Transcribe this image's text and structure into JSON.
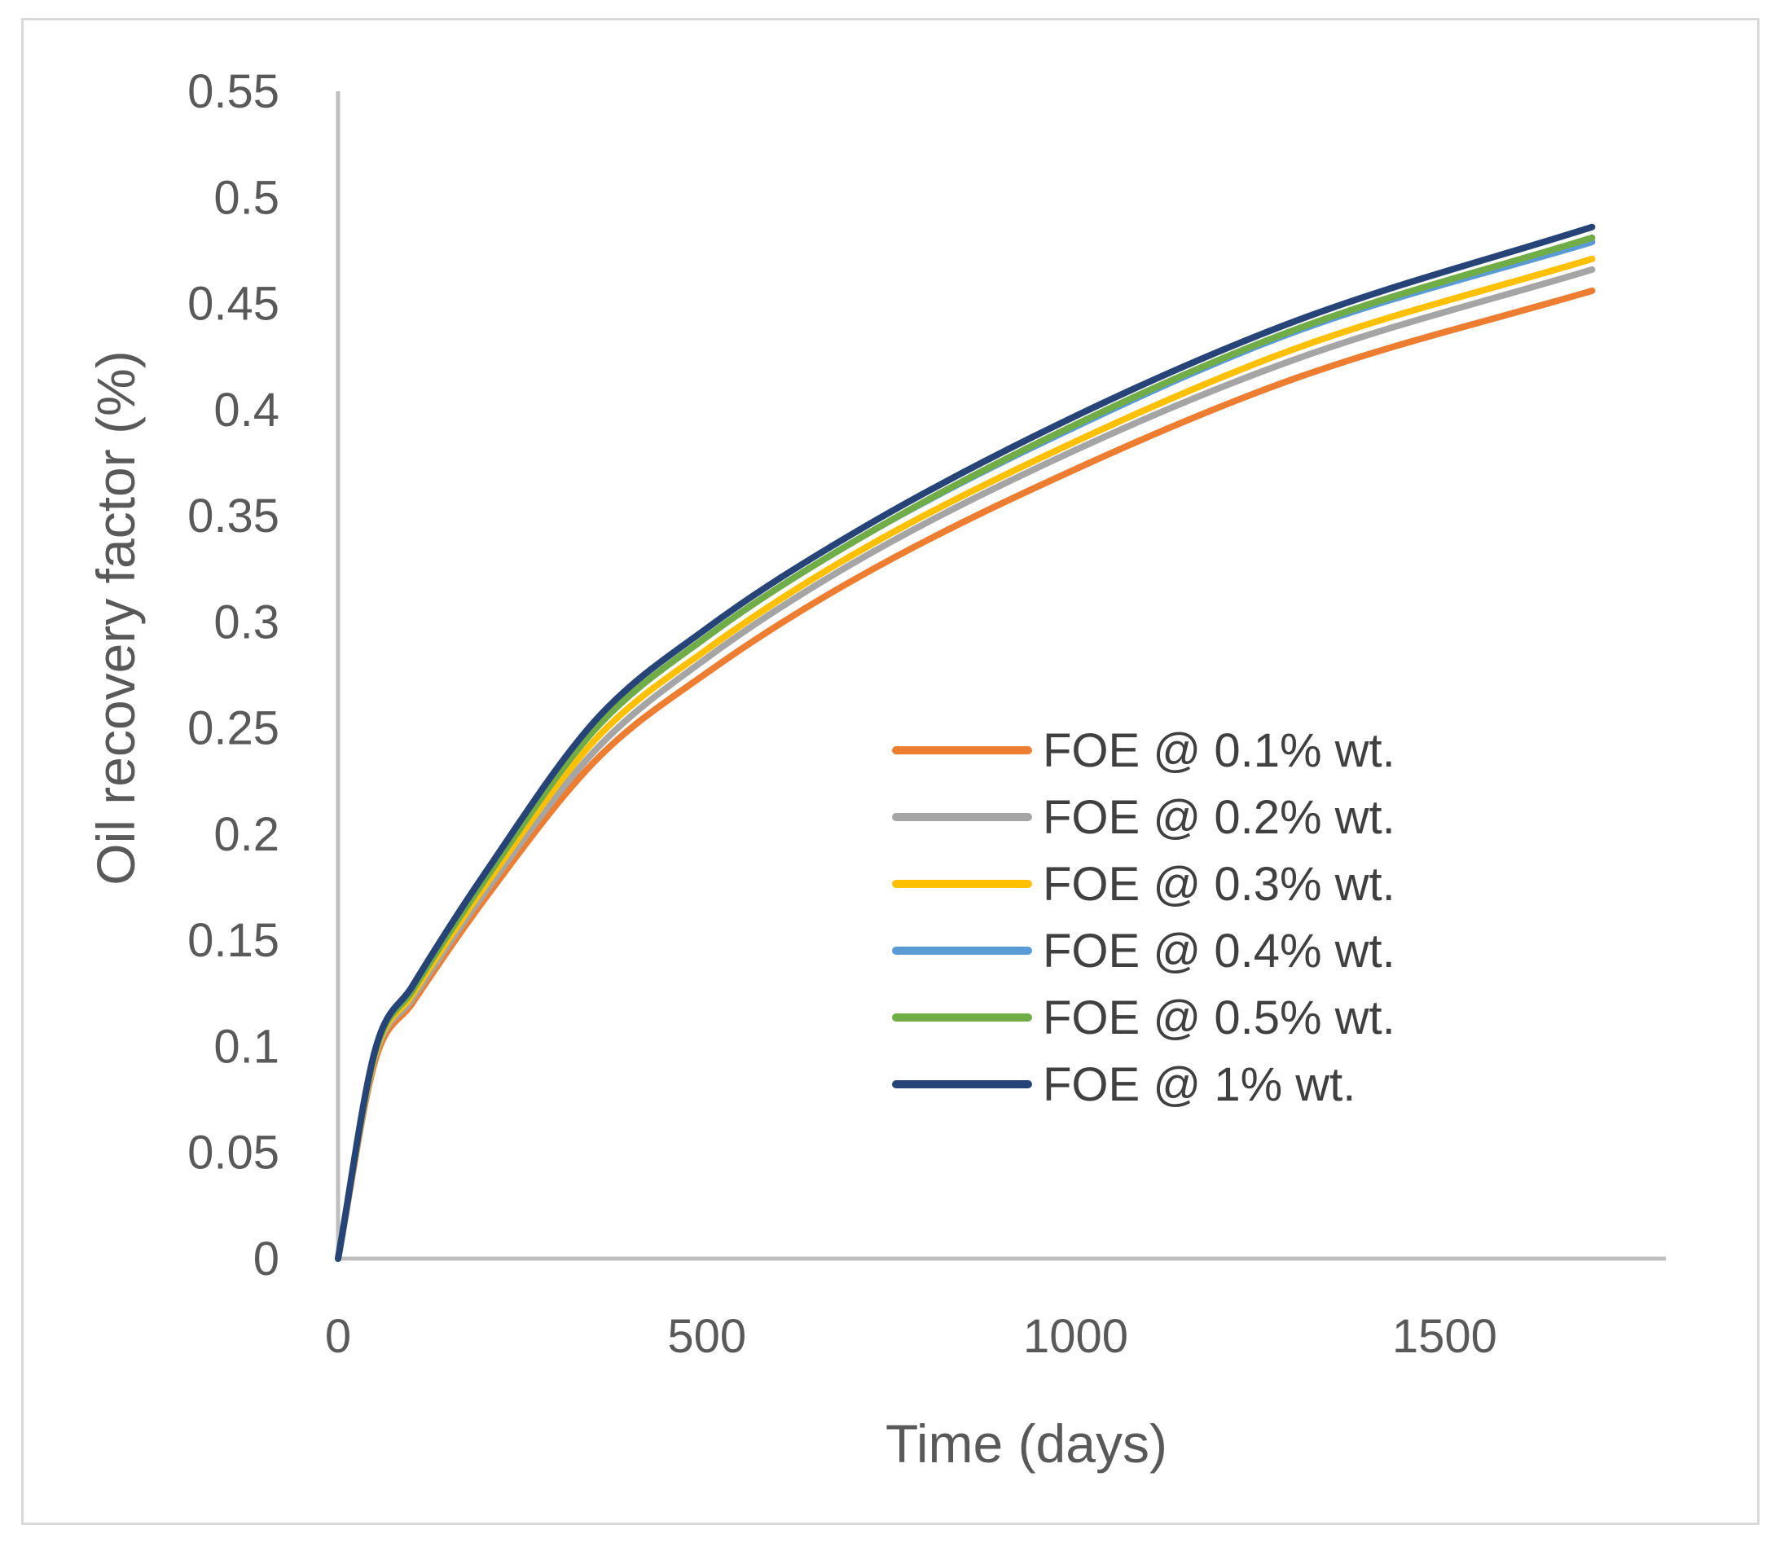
{
  "chart_data": {
    "type": "line",
    "title": "",
    "xlabel": "Time (days)",
    "ylabel": "Oil recovery factor (%)",
    "xlim": [
      0,
      1800
    ],
    "ylim": [
      0,
      0.55
    ],
    "xticks": [
      0,
      500,
      1000,
      1500
    ],
    "xtick_labels": [
      "0",
      "500",
      "1000",
      "1500"
    ],
    "yticks": [
      0,
      0.05,
      0.1,
      0.15,
      0.2,
      0.25,
      0.3,
      0.35,
      0.4,
      0.45,
      0.5,
      0.55
    ],
    "ytick_labels": [
      "0",
      "0.05",
      "0.1",
      "0.15",
      "0.2",
      "0.25",
      "0.3",
      "0.35",
      "0.4",
      "0.45",
      "0.5",
      "0.55"
    ],
    "grid": false,
    "legend_position": "center-right",
    "x": [
      0,
      50,
      100,
      200,
      350,
      500,
      700,
      1000,
      1300,
      1700
    ],
    "series": [
      {
        "name": "FOE @ 0.1% wt.",
        "color": "#ED7D31",
        "values": [
          0,
          0.093,
          0.12,
          0.17,
          0.235,
          0.276,
          0.32,
          0.372,
          0.415,
          0.456
        ]
      },
      {
        "name": "FOE @ 0.2% wt.",
        "color": "#A5A5A5",
        "values": [
          0,
          0.095,
          0.122,
          0.173,
          0.24,
          0.283,
          0.328,
          0.381,
          0.424,
          0.466
        ]
      },
      {
        "name": "FOE @ 0.3% wt.",
        "color": "#FFC000",
        "values": [
          0,
          0.096,
          0.124,
          0.176,
          0.245,
          0.287,
          0.332,
          0.385,
          0.429,
          0.471
        ]
      },
      {
        "name": "FOE @ 0.4% wt.",
        "color": "#5B9BD5",
        "values": [
          0,
          0.097,
          0.126,
          0.179,
          0.25,
          0.293,
          0.338,
          0.392,
          0.437,
          0.479
        ]
      },
      {
        "name": "FOE @ 0.5% wt.",
        "color": "#70AD47",
        "values": [
          0,
          0.097,
          0.126,
          0.179,
          0.25,
          0.293,
          0.338,
          0.393,
          0.438,
          0.481
        ]
      },
      {
        "name": "FOE @ 1% wt.",
        "color": "#264478",
        "values": [
          0,
          0.098,
          0.128,
          0.182,
          0.254,
          0.297,
          0.342,
          0.397,
          0.442,
          0.486
        ]
      }
    ],
    "axis_color": "#bfbfbf"
  }
}
